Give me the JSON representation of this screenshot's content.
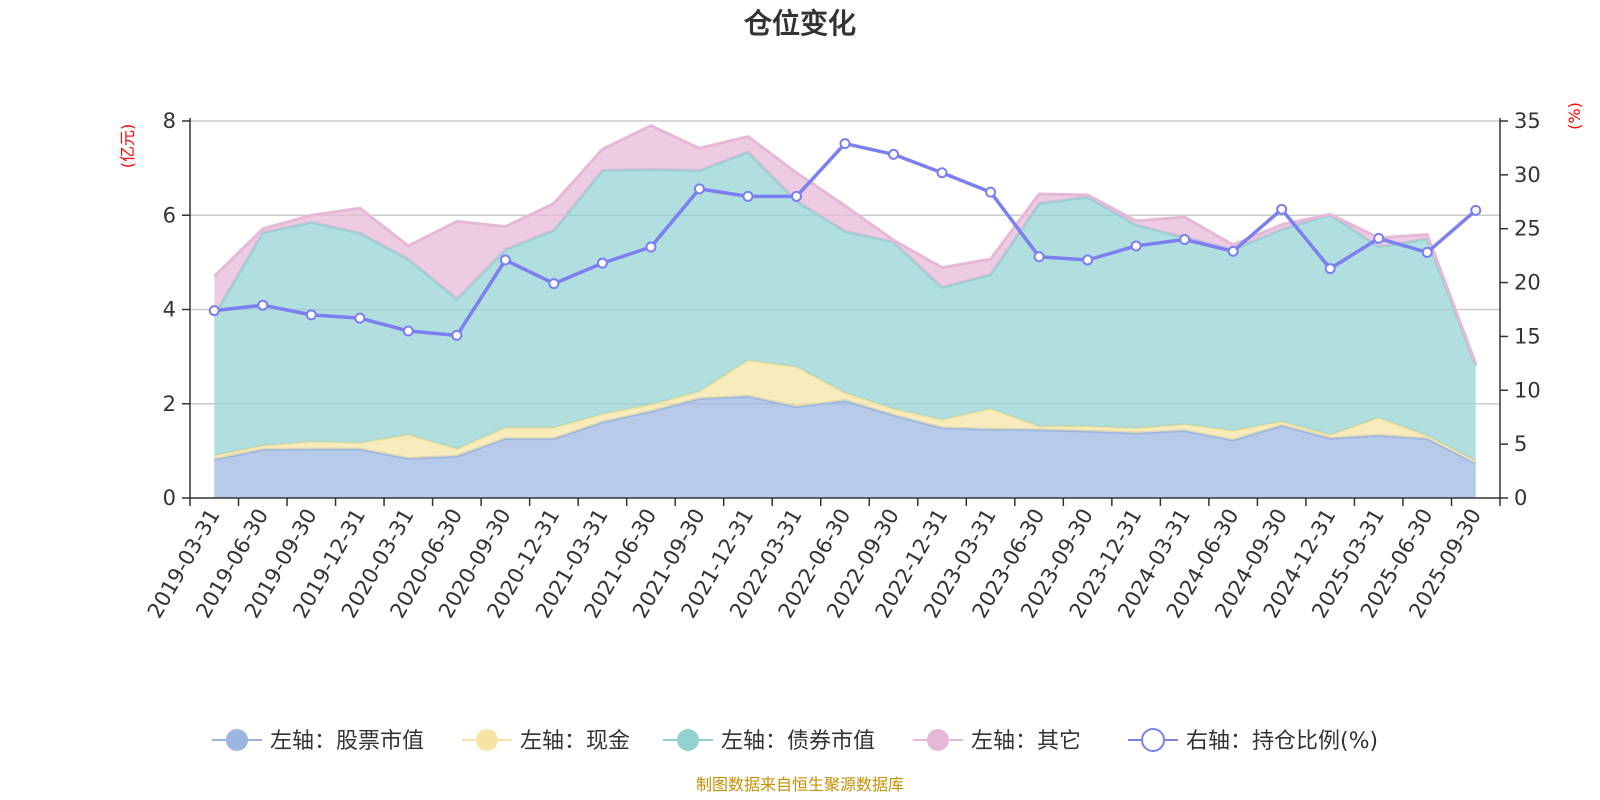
{
  "chart_data": {
    "type": "area",
    "title": "仓位变化",
    "left_axis_label": "(亿元)",
    "right_axis_label": "(%)",
    "ylim_left": [
      0,
      8
    ],
    "yticks_left": [
      0,
      2,
      4,
      6,
      8
    ],
    "ylim_right": [
      0,
      35
    ],
    "yticks_right": [
      0,
      5,
      10,
      15,
      20,
      25,
      30,
      35
    ],
    "stacked": true,
    "categories": [
      "2019-03-31",
      "2019-06-30",
      "2019-09-30",
      "2019-12-31",
      "2020-03-31",
      "2020-06-30",
      "2020-09-30",
      "2020-12-31",
      "2021-03-31",
      "2021-06-30",
      "2021-09-30",
      "2021-12-31",
      "2022-03-31",
      "2022-06-30",
      "2022-09-30",
      "2022-12-31",
      "2023-03-31",
      "2023-06-30",
      "2023-09-30",
      "2023-12-31",
      "2024-03-31",
      "2024-06-30",
      "2024-09-30",
      "2024-12-31",
      "2025-03-31",
      "2025-06-30",
      "2025-09-30"
    ],
    "series": [
      {
        "name": "左轴：股票市值",
        "axis": "left",
        "color": "#9bb5e0",
        "values": [
          0.82,
          1.03,
          1.04,
          1.04,
          0.84,
          0.89,
          1.26,
          1.26,
          1.61,
          1.84,
          2.11,
          2.16,
          1.94,
          2.07,
          1.76,
          1.49,
          1.46,
          1.45,
          1.42,
          1.38,
          1.43,
          1.23,
          1.54,
          1.27,
          1.33,
          1.26,
          0.74
        ]
      },
      {
        "name": "左轴：现金",
        "axis": "left",
        "color": "#f5e4a3",
        "values": [
          0.08,
          0.08,
          0.15,
          0.13,
          0.5,
          0.15,
          0.23,
          0.23,
          0.17,
          0.14,
          0.15,
          0.76,
          0.84,
          0.16,
          0.13,
          0.17,
          0.43,
          0.07,
          0.1,
          0.1,
          0.13,
          0.2,
          0.08,
          0.07,
          0.37,
          0.06,
          0.04
        ]
      },
      {
        "name": "左轴：债券市值",
        "axis": "left",
        "color": "#93d1d1",
        "values": [
          2.98,
          4.52,
          4.66,
          4.45,
          3.73,
          3.18,
          3.78,
          4.19,
          5.17,
          4.99,
          4.69,
          4.42,
          3.52,
          3.43,
          3.54,
          2.81,
          2.85,
          4.73,
          4.87,
          4.31,
          3.97,
          3.84,
          4.08,
          4.67,
          3.63,
          4.18,
          2.03
        ]
      },
      {
        "name": "左轴：其它",
        "axis": "left",
        "color": "#e6b8d8",
        "values": [
          0.82,
          0.08,
          0.15,
          0.53,
          0.28,
          1.65,
          0.49,
          0.57,
          0.45,
          0.93,
          0.47,
          0.33,
          0.6,
          0.54,
          0.04,
          0.42,
          0.33,
          0.2,
          0.04,
          0.09,
          0.43,
          0.1,
          0.1,
          0.01,
          0.19,
          0.09,
          0.04
        ]
      },
      {
        "name": "右轴：持仓比例(%)",
        "axis": "right",
        "type": "line",
        "color": "#7b7ff0",
        "values": [
          17.4,
          17.9,
          17.0,
          16.7,
          15.5,
          15.1,
          22.1,
          19.9,
          21.8,
          23.3,
          28.7,
          28.0,
          28.0,
          32.9,
          31.9,
          30.2,
          28.4,
          22.4,
          22.1,
          23.4,
          24.0,
          22.9,
          26.8,
          21.3,
          24.1,
          22.8,
          26.7
        ]
      }
    ]
  },
  "footer": {
    "source": "制图数据来自恒生聚源数据库"
  },
  "colors": {
    "unit_red": "#ff0000",
    "source_gold": "#c49000",
    "axis": "#333333",
    "grid": "#cccccc"
  }
}
